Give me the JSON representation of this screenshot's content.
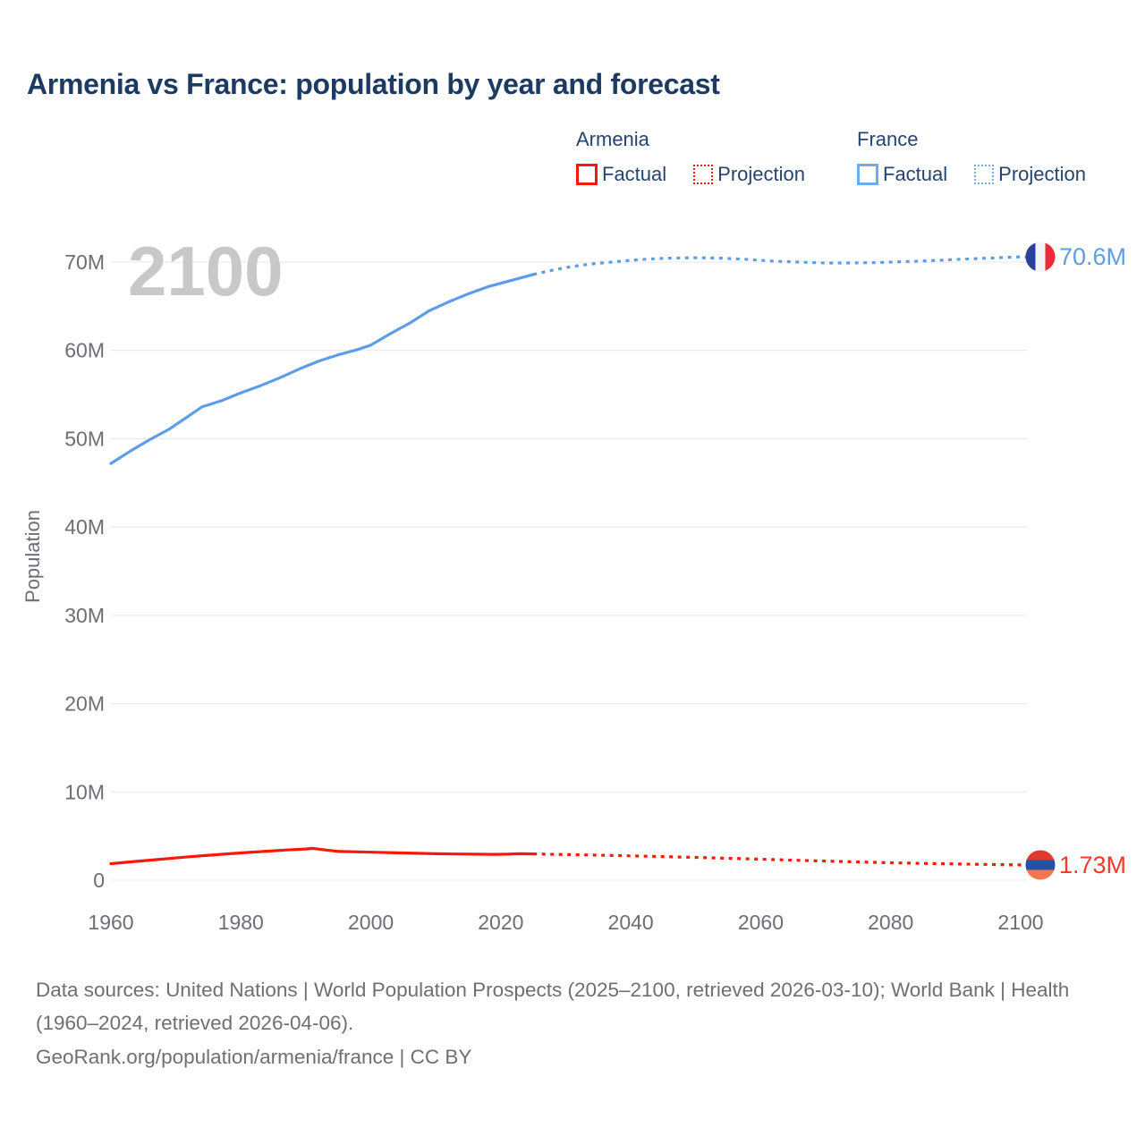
{
  "title": "Armenia vs France: population by year and forecast",
  "legend": {
    "position": "top-right",
    "groups": [
      {
        "country": "Armenia",
        "color": "#f5190a",
        "factual_label": "Factual",
        "projection_label": "Projection"
      },
      {
        "country": "France",
        "color": "#70ace9",
        "factual_label": "Factual",
        "projection_label": "Projection"
      }
    ]
  },
  "chart_data": {
    "type": "line",
    "title": "Armenia vs France: population by year and forecast",
    "xlabel": "",
    "ylabel": "Population",
    "xlim": [
      1960,
      2100
    ],
    "ylim": [
      0,
      70
    ],
    "x_ticks": [
      "1960",
      "1980",
      "2000",
      "2020",
      "2040",
      "2060",
      "2080",
      "2100"
    ],
    "y_ticks": [
      {
        "value": 0,
        "label": "0"
      },
      {
        "value": 10,
        "label": "10M"
      },
      {
        "value": 20,
        "label": "20M"
      },
      {
        "value": 30,
        "label": "30M"
      },
      {
        "value": 40,
        "label": "40M"
      },
      {
        "value": 50,
        "label": "50M"
      },
      {
        "value": 60,
        "label": "60M"
      },
      {
        "value": 70,
        "label": "70M"
      }
    ],
    "grid": "horizontal",
    "grid_color": "#e7e7e7",
    "axis_text_color": "#6d6d76",
    "watermark": "2100",
    "watermark_color": "#c8c8c8",
    "legend_position": "top-right",
    "series": [
      {
        "name": "France factual",
        "country": "France",
        "kind": "factual",
        "style": "solid",
        "color": "#5d9de8",
        "points": [
          [
            1960,
            47.2
          ],
          [
            1963,
            48.6
          ],
          [
            1966,
            49.9
          ],
          [
            1969,
            51.1
          ],
          [
            1972,
            52.6
          ],
          [
            1974,
            53.6
          ],
          [
            1977,
            54.3
          ],
          [
            1980,
            55.2
          ],
          [
            1983,
            56.0
          ],
          [
            1986,
            56.9
          ],
          [
            1989,
            57.9
          ],
          [
            1992,
            58.8
          ],
          [
            1995,
            59.5
          ],
          [
            1998,
            60.1
          ],
          [
            2000,
            60.6
          ],
          [
            2003,
            61.9
          ],
          [
            2006,
            63.1
          ],
          [
            2009,
            64.5
          ],
          [
            2012,
            65.5
          ],
          [
            2015,
            66.4
          ],
          [
            2018,
            67.2
          ],
          [
            2021,
            67.8
          ],
          [
            2024,
            68.4
          ],
          [
            2025,
            68.6
          ]
        ]
      },
      {
        "name": "France projection",
        "country": "France",
        "kind": "projection",
        "style": "dashed",
        "color": "#5d9de8",
        "points": [
          [
            2025,
            68.6
          ],
          [
            2028,
            69.1
          ],
          [
            2031,
            69.5
          ],
          [
            2034,
            69.8
          ],
          [
            2037,
            70.0
          ],
          [
            2040,
            70.2
          ],
          [
            2043,
            70.35
          ],
          [
            2046,
            70.45
          ],
          [
            2050,
            70.5
          ],
          [
            2054,
            70.45
          ],
          [
            2058,
            70.3
          ],
          [
            2062,
            70.1
          ],
          [
            2066,
            70.0
          ],
          [
            2070,
            69.9
          ],
          [
            2074,
            69.9
          ],
          [
            2078,
            69.95
          ],
          [
            2082,
            70.05
          ],
          [
            2086,
            70.15
          ],
          [
            2090,
            70.3
          ],
          [
            2095,
            70.45
          ],
          [
            2100,
            70.6
          ]
        ]
      },
      {
        "name": "Armenia factual",
        "country": "Armenia",
        "kind": "factual",
        "style": "solid",
        "color": "#f5190a",
        "points": [
          [
            1960,
            1.87
          ],
          [
            1963,
            2.08
          ],
          [
            1966,
            2.27
          ],
          [
            1969,
            2.46
          ],
          [
            1972,
            2.65
          ],
          [
            1975,
            2.83
          ],
          [
            1978,
            2.99
          ],
          [
            1981,
            3.14
          ],
          [
            1984,
            3.28
          ],
          [
            1987,
            3.42
          ],
          [
            1990,
            3.54
          ],
          [
            1991,
            3.61
          ],
          [
            1993,
            3.42
          ],
          [
            1995,
            3.26
          ],
          [
            1998,
            3.21
          ],
          [
            2001,
            3.16
          ],
          [
            2004,
            3.1
          ],
          [
            2007,
            3.05
          ],
          [
            2010,
            3.0
          ],
          [
            2013,
            2.97
          ],
          [
            2016,
            2.95
          ],
          [
            2019,
            2.93
          ],
          [
            2021,
            2.95
          ],
          [
            2023,
            3.0
          ],
          [
            2025,
            2.98
          ]
        ]
      },
      {
        "name": "Armenia projection",
        "country": "Armenia",
        "kind": "projection",
        "style": "dashed",
        "color": "#f5190a",
        "points": [
          [
            2025,
            2.98
          ],
          [
            2030,
            2.91
          ],
          [
            2035,
            2.84
          ],
          [
            2040,
            2.76
          ],
          [
            2045,
            2.67
          ],
          [
            2050,
            2.58
          ],
          [
            2055,
            2.48
          ],
          [
            2060,
            2.38
          ],
          [
            2065,
            2.27
          ],
          [
            2070,
            2.17
          ],
          [
            2075,
            2.07
          ],
          [
            2080,
            1.98
          ],
          [
            2085,
            1.9
          ],
          [
            2090,
            1.84
          ],
          [
            2095,
            1.78
          ],
          [
            2100,
            1.73
          ]
        ]
      }
    ],
    "end_markers": [
      {
        "country": "France",
        "label": "70.6M",
        "value": 70.6,
        "label_color": "#5d9de8",
        "flag_orientation": "vertical",
        "flag_stripes": [
          "#28429b",
          "#f2f4f7",
          "#ee2b38"
        ]
      },
      {
        "country": "Armenia",
        "label": "1.73M",
        "value": 1.73,
        "label_color": "#f5392b",
        "flag_orientation": "horizontal",
        "flag_stripes": [
          "#e03a30",
          "#2152a3",
          "#f4764f"
        ]
      }
    ]
  },
  "footer": {
    "sources": "Data sources: United Nations | World Population Prospects (2025–2100, retrieved 2026-03-10); World Bank | Health (1960–2024, retrieved 2026-04-06).",
    "link": "GeoRank.org/population/armenia/france | CC BY"
  }
}
